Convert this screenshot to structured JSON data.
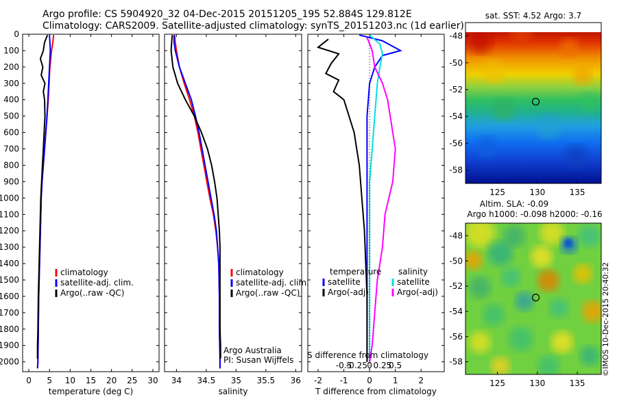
{
  "title_line1": "Argo profile: CS 5904920_32 04-Dec-2015 20151205_195 52.884S 129.812E",
  "title_line2": "Climatology: CARS2009. Satellite-adjusted climatology: synTS_20151203.nc (1d earlier)",
  "stamp": "©IMOS 10-Dec-2015 20:40:32",
  "colors": {
    "climatology": "#ff0000",
    "satellite": "#0000ff",
    "argo": "#000000",
    "sat_salinity": "#00e0e0",
    "argo_salinity": "#ff00ff"
  },
  "depth_axis": {
    "ticks": [
      0,
      100,
      200,
      300,
      400,
      500,
      600,
      700,
      800,
      900,
      1000,
      1100,
      1200,
      1300,
      1400,
      1500,
      1600,
      1700,
      1800,
      1900,
      2000
    ],
    "ylim": [
      0,
      2060
    ]
  },
  "chart_data": [
    {
      "type": "line",
      "id": "temperature",
      "xlabel": "temperature (deg C)",
      "xlim": [
        -1.5,
        31.5
      ],
      "xticks": [
        0,
        5,
        10,
        15,
        20,
        25,
        30
      ],
      "legend": [
        "climatology",
        "satellite-adj. clim.",
        "Argo(..raw -QC)"
      ],
      "series": [
        {
          "name": "climatology",
          "color": "#ff0000",
          "points": [
            [
              6.0,
              5
            ],
            [
              5.8,
              50
            ],
            [
              5.5,
              100
            ],
            [
              5.1,
              200
            ],
            [
              4.9,
              300
            ],
            [
              4.7,
              400
            ],
            [
              4.4,
              500
            ],
            [
              4.1,
              600
            ],
            [
              3.8,
              700
            ],
            [
              3.5,
              800
            ],
            [
              3.2,
              900
            ],
            [
              3.0,
              1000
            ],
            [
              2.8,
              1200
            ],
            [
              2.6,
              1400
            ],
            [
              2.4,
              1600
            ],
            [
              2.3,
              1800
            ],
            [
              2.2,
              2000
            ],
            [
              2.1,
              2040
            ]
          ]
        },
        {
          "name": "satellite-adj. clim.",
          "color": "#0000ff",
          "points": [
            [
              5.0,
              5
            ],
            [
              5.1,
              50
            ],
            [
              5.2,
              100
            ],
            [
              5.0,
              200
            ],
            [
              4.8,
              300
            ],
            [
              4.6,
              400
            ],
            [
              4.4,
              500
            ],
            [
              4.1,
              600
            ],
            [
              3.8,
              700
            ],
            [
              3.5,
              800
            ],
            [
              3.2,
              900
            ],
            [
              3.0,
              1000
            ],
            [
              2.8,
              1200
            ],
            [
              2.6,
              1400
            ],
            [
              2.4,
              1600
            ],
            [
              2.3,
              1800
            ],
            [
              2.2,
              2000
            ],
            [
              2.1,
              2040
            ]
          ]
        },
        {
          "name": "Argo(..raw -QC)",
          "color": "#000000",
          "points": [
            [
              4.5,
              5
            ],
            [
              3.8,
              50
            ],
            [
              3.5,
              100
            ],
            [
              2.8,
              150
            ],
            [
              3.4,
              200
            ],
            [
              3.0,
              250
            ],
            [
              3.9,
              300
            ],
            [
              3.5,
              350
            ],
            [
              3.8,
              400
            ],
            [
              3.9,
              500
            ],
            [
              3.7,
              600
            ],
            [
              3.5,
              700
            ],
            [
              3.3,
              800
            ],
            [
              3.1,
              900
            ],
            [
              2.9,
              1000
            ],
            [
              2.7,
              1200
            ],
            [
              2.5,
              1400
            ],
            [
              2.3,
              1600
            ],
            [
              2.2,
              1800
            ],
            [
              2.1,
              1900
            ],
            [
              2.1,
              1980
            ]
          ]
        }
      ]
    },
    {
      "type": "line",
      "id": "salinity",
      "xlabel": "salinity",
      "xlim": [
        33.8,
        36.1
      ],
      "xticks": [
        34,
        34.5,
        35,
        35.5,
        36
      ],
      "legend": [
        "climatology",
        "satellite-adj. clim.",
        "Argo(..raw -QC)"
      ],
      "annotation": [
        "Argo Australia",
        "PI: Susan Wijffels"
      ],
      "series": [
        {
          "name": "climatology",
          "color": "#ff0000",
          "points": [
            [
              33.97,
              5
            ],
            [
              33.98,
              50
            ],
            [
              34.0,
              100
            ],
            [
              34.05,
              200
            ],
            [
              34.13,
              300
            ],
            [
              34.22,
              400
            ],
            [
              34.3,
              500
            ],
            [
              34.36,
              600
            ],
            [
              34.41,
              700
            ],
            [
              34.46,
              800
            ],
            [
              34.51,
              900
            ],
            [
              34.56,
              1000
            ],
            [
              34.62,
              1100
            ],
            [
              34.66,
              1200
            ],
            [
              34.69,
              1300
            ],
            [
              34.71,
              1400
            ],
            [
              34.72,
              1600
            ],
            [
              34.73,
              1800
            ],
            [
              34.73,
              2000
            ],
            [
              34.73,
              2040
            ]
          ]
        },
        {
          "name": "satellite-adj. clim.",
          "color": "#0000ff",
          "points": [
            [
              33.96,
              5
            ],
            [
              33.96,
              50
            ],
            [
              33.98,
              100
            ],
            [
              34.05,
              200
            ],
            [
              34.15,
              300
            ],
            [
              34.25,
              400
            ],
            [
              34.32,
              500
            ],
            [
              34.38,
              600
            ],
            [
              34.43,
              700
            ],
            [
              34.48,
              800
            ],
            [
              34.53,
              900
            ],
            [
              34.58,
              1000
            ],
            [
              34.63,
              1100
            ],
            [
              34.67,
              1200
            ],
            [
              34.69,
              1300
            ],
            [
              34.71,
              1400
            ],
            [
              34.72,
              1600
            ],
            [
              34.72,
              1800
            ],
            [
              34.73,
              2000
            ],
            [
              34.73,
              2040
            ]
          ]
        },
        {
          "name": "Argo(..raw -QC)",
          "color": "#000000",
          "points": [
            [
              33.93,
              5
            ],
            [
              33.92,
              50
            ],
            [
              33.91,
              100
            ],
            [
              33.94,
              200
            ],
            [
              34.02,
              300
            ],
            [
              34.15,
              400
            ],
            [
              34.3,
              500
            ],
            [
              34.42,
              600
            ],
            [
              34.52,
              700
            ],
            [
              34.59,
              800
            ],
            [
              34.64,
              900
            ],
            [
              34.68,
              1000
            ],
            [
              34.7,
              1100
            ],
            [
              34.72,
              1200
            ],
            [
              34.73,
              1300
            ],
            [
              34.73,
              1400
            ],
            [
              34.73,
              1600
            ],
            [
              34.73,
              1800
            ],
            [
              34.74,
              1900
            ],
            [
              34.74,
              1980
            ]
          ]
        }
      ]
    },
    {
      "type": "line",
      "id": "difference",
      "xlabel": "T difference from climatology",
      "xlabel_top": "S difference from climatology",
      "xlim": [
        -2.4,
        2.9
      ],
      "xticks": [
        -2,
        -1,
        0,
        1,
        2
      ],
      "top_ticks": [
        {
          "label": "-0.5",
          "x": -1.0
        },
        {
          "label": "-0.25",
          "x": -0.5
        },
        {
          "label": "0",
          "x": 0.0
        },
        {
          "label": "0.25",
          "x": 0.5
        },
        {
          "label": "0.5",
          "x": 1.0
        }
      ],
      "legend_left_title": "temperature",
      "legend_right_title": "salinity",
      "legend_left": [
        "satellite",
        "Argo(-adj)"
      ],
      "legend_right": [
        "satellite",
        "Argo(-adj)"
      ],
      "series": [
        {
          "name": "temperature satellite",
          "color": "#0000ff",
          "points": [
            [
              -0.4,
              5
            ],
            [
              0.5,
              40
            ],
            [
              1.2,
              100
            ],
            [
              0.5,
              130
            ],
            [
              0.2,
              200
            ],
            [
              0.0,
              300
            ],
            [
              -0.1,
              500
            ],
            [
              -0.1,
              800
            ],
            [
              -0.1,
              1200
            ],
            [
              -0.1,
              1600
            ],
            [
              -0.1,
              2000
            ]
          ]
        },
        {
          "name": "temperature Argo(-adj)",
          "color": "#000000",
          "points": [
            [
              -1.6,
              30
            ],
            [
              -2.0,
              80
            ],
            [
              -1.2,
              120
            ],
            [
              -1.5,
              180
            ],
            [
              -1.7,
              240
            ],
            [
              -1.2,
              280
            ],
            [
              -1.4,
              350
            ],
            [
              -1.0,
              400
            ],
            [
              -0.8,
              500
            ],
            [
              -0.6,
              600
            ],
            [
              -0.5,
              700
            ],
            [
              -0.4,
              800
            ],
            [
              -0.3,
              1000
            ],
            [
              -0.2,
              1200
            ],
            [
              -0.15,
              1400
            ],
            [
              -0.1,
              1600
            ],
            [
              -0.1,
              1800
            ],
            [
              -0.1,
              2000
            ]
          ]
        },
        {
          "name": "salinity satellite",
          "color": "#00e0e0",
          "points": [
            [
              0.0,
              5
            ],
            [
              0.4,
              60
            ],
            [
              0.5,
              120
            ],
            [
              0.4,
              200
            ],
            [
              0.3,
              300
            ],
            [
              0.2,
              500
            ],
            [
              0.1,
              700
            ],
            [
              0.0,
              900
            ],
            [
              0.0,
              1200
            ],
            [
              0.0,
              1600
            ],
            [
              0.0,
              2000
            ]
          ]
        },
        {
          "name": "salinity Argo(-adj)",
          "color": "#ff00ff",
          "points": [
            [
              -0.1,
              20
            ],
            [
              0.1,
              100
            ],
            [
              0.2,
              200
            ],
            [
              0.5,
              300
            ],
            [
              0.7,
              400
            ],
            [
              0.8,
              500
            ],
            [
              0.9,
              600
            ],
            [
              1.0,
              700
            ],
            [
              0.9,
              900
            ],
            [
              0.6,
              1100
            ],
            [
              0.5,
              1300
            ],
            [
              0.3,
              1500
            ],
            [
              0.2,
              1700
            ],
            [
              0.1,
              1900
            ],
            [
              0.0,
              2000
            ]
          ]
        }
      ]
    },
    {
      "type": "heatmap",
      "id": "sst-map",
      "title": "sat. SST: 4.52 Argo: 3.7",
      "xlim": [
        121,
        138
      ],
      "ylim": [
        -59,
        -47
      ],
      "xticks": [
        125,
        130,
        135
      ],
      "yticks": [
        -48,
        -50,
        -52,
        -54,
        -56,
        -58
      ],
      "marker": [
        129.8,
        -52.9
      ]
    },
    {
      "type": "heatmap",
      "id": "sla-map",
      "title_line1": "Altim. SLA: -0.09",
      "title_line2": "Argo h1000: -0.098 h2000: -0.16",
      "xlim": [
        121,
        138
      ],
      "ylim": [
        -59,
        -47
      ],
      "xticks": [
        125,
        130,
        135
      ],
      "yticks": [
        -48,
        -50,
        -52,
        -54,
        -56,
        -58
      ],
      "marker": [
        129.8,
        -52.9
      ]
    }
  ]
}
